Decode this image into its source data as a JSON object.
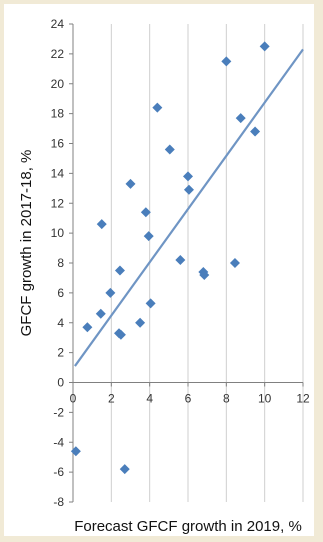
{
  "chart_data": {
    "type": "scatter",
    "title": "",
    "xlabel": "Forecast GFCF growth in 2019, %",
    "ylabel": "GFCF growth in 2017-18, %",
    "xlim": [
      0,
      12
    ],
    "ylim": [
      -8,
      24
    ],
    "xticks": [
      0,
      2,
      4,
      6,
      8,
      10,
      12
    ],
    "yticks": [
      -8,
      -6,
      -4,
      -2,
      0,
      2,
      4,
      6,
      8,
      10,
      12,
      14,
      16,
      18,
      20,
      22,
      24
    ],
    "grid": "vertical",
    "series": [
      {
        "marker_color": "#4a7ebb",
        "points": [
          {
            "x": 0.15,
            "y": -4.6
          },
          {
            "x": 2.7,
            "y": -5.8
          },
          {
            "x": 0.75,
            "y": 3.7
          },
          {
            "x": 1.45,
            "y": 4.6
          },
          {
            "x": 1.5,
            "y": 10.6
          },
          {
            "x": 1.95,
            "y": 6.0
          },
          {
            "x": 2.4,
            "y": 3.3
          },
          {
            "x": 2.5,
            "y": 3.2
          },
          {
            "x": 2.45,
            "y": 7.5
          },
          {
            "x": 3.0,
            "y": 13.3
          },
          {
            "x": 3.5,
            "y": 4.0
          },
          {
            "x": 3.8,
            "y": 11.4
          },
          {
            "x": 3.95,
            "y": 9.8
          },
          {
            "x": 4.05,
            "y": 5.3
          },
          {
            "x": 4.4,
            "y": 18.4
          },
          {
            "x": 5.05,
            "y": 15.6
          },
          {
            "x": 5.6,
            "y": 8.2
          },
          {
            "x": 6.0,
            "y": 13.8
          },
          {
            "x": 6.05,
            "y": 12.9
          },
          {
            "x": 6.8,
            "y": 7.4
          },
          {
            "x": 6.85,
            "y": 7.2
          },
          {
            "x": 8.0,
            "y": 21.5
          },
          {
            "x": 8.45,
            "y": 8.0
          },
          {
            "x": 8.75,
            "y": 17.7
          },
          {
            "x": 9.5,
            "y": 16.8
          },
          {
            "x": 10.0,
            "y": 22.5
          }
        ]
      }
    ],
    "trendline": {
      "color": "#6f95c4",
      "x": [
        0.1,
        12
      ],
      "y": [
        1.1,
        22.3
      ]
    }
  }
}
